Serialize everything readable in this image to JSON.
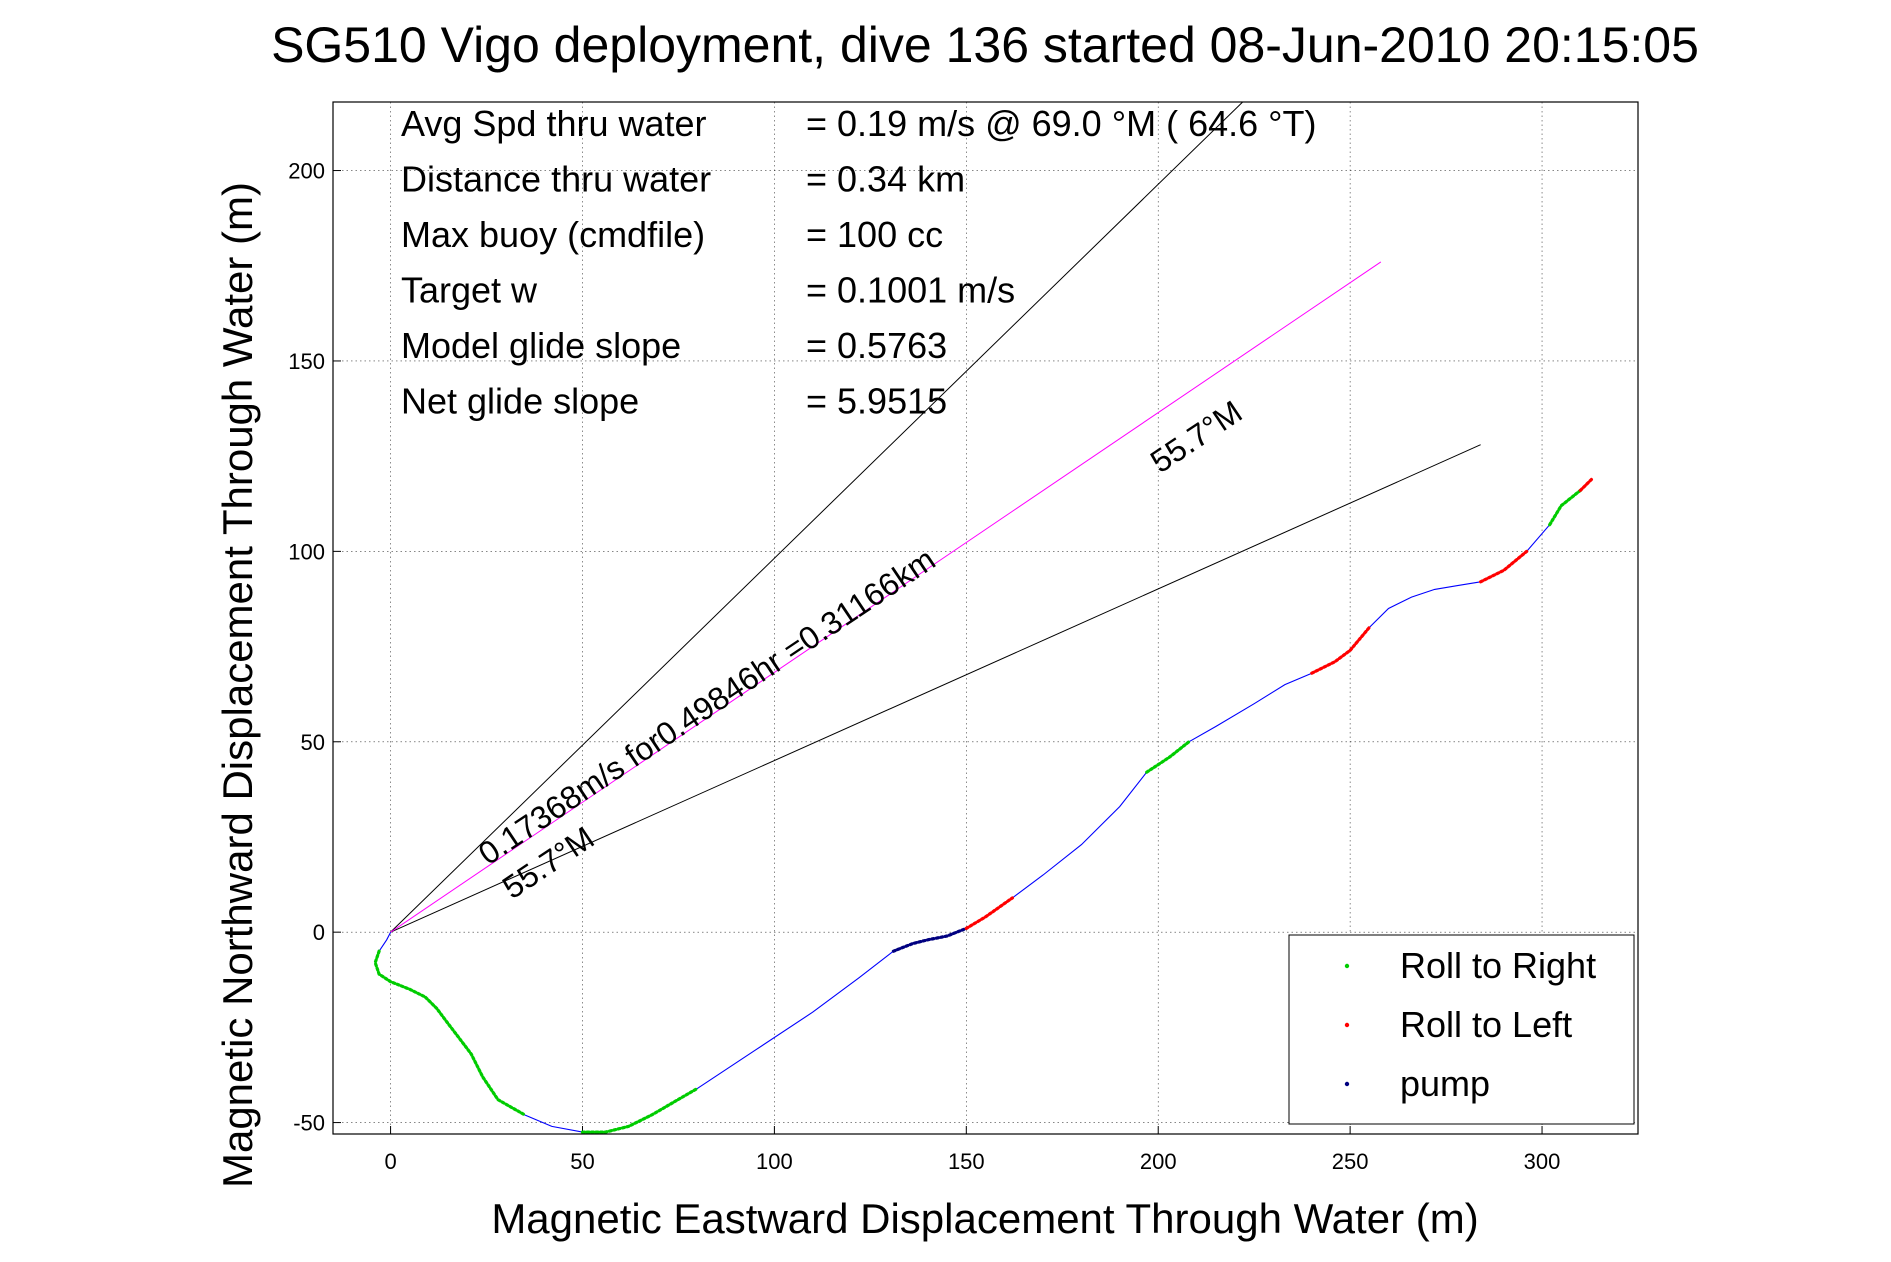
{
  "chart_data": {
    "type": "line",
    "title": "SG510 Vigo deployment, dive 136 started 08-Jun-2010 20:15:05",
    "xlabel": "Magnetic Eastward Displacement Through Water (m)",
    "ylabel": "Magnetic Northward Displacement Through Water (m)",
    "xlim": [
      -15,
      325
    ],
    "ylim": [
      -53,
      218
    ],
    "xticks": [
      0,
      50,
      100,
      150,
      200,
      250,
      300
    ],
    "yticks": [
      -50,
      0,
      50,
      100,
      150,
      200
    ],
    "grid": true,
    "legend_position": "bottom-right",
    "legend": [
      {
        "name": "Roll to Right",
        "color": "#00cc00"
      },
      {
        "name": "Roll to Left",
        "color": "#ff0000"
      },
      {
        "name": "pump",
        "color": "#000080"
      }
    ],
    "info_lines": [
      {
        "label": "Avg Spd thru water",
        "value": "=  0.19 m/s @  69.0 °M ( 64.6 °T)"
      },
      {
        "label": "Distance thru water",
        "value": "=  0.34 km"
      },
      {
        "label": "Max buoy (cmdfile)",
        "value": "= 100 cc"
      },
      {
        "label": "Target w",
        "value": "= 0.1001 m/s"
      },
      {
        "label": "Model glide slope",
        "value": "= 0.5763"
      },
      {
        "label": "Net glide slope",
        "value": "= 5.9515"
      }
    ],
    "annotations": {
      "mean_vector": "0.17368m/s for0.49846hr =0.31166km",
      "heading_upper": "55.7°M",
      "heading_lower": "55.7°M"
    },
    "reference_lines": [
      {
        "name": "upper-heading-line",
        "color": "#000000",
        "from": [
          0,
          0
        ],
        "to": [
          222,
          218
        ]
      },
      {
        "name": "lower-heading-line",
        "color": "#000000",
        "from": [
          0,
          0
        ],
        "to": [
          284,
          128
        ]
      },
      {
        "name": "mean-current-line",
        "color": "#ff00ff",
        "from": [
          0,
          0
        ],
        "to": [
          258,
          176
        ]
      }
    ],
    "track": {
      "name": "glider track",
      "color": "#0000ff",
      "points": [
        [
          0,
          0
        ],
        [
          -1,
          -2
        ],
        [
          -3,
          -5
        ],
        [
          -4,
          -8
        ],
        [
          -3,
          -11
        ],
        [
          0,
          -13
        ],
        [
          5,
          -15
        ],
        [
          9,
          -17
        ],
        [
          12,
          -20
        ],
        [
          15,
          -24
        ],
        [
          18,
          -28
        ],
        [
          21,
          -32
        ],
        [
          24,
          -38
        ],
        [
          28,
          -44
        ],
        [
          35,
          -48
        ],
        [
          42,
          -51
        ],
        [
          50,
          -52.5
        ],
        [
          56,
          -52.5
        ],
        [
          62,
          -51
        ],
        [
          68,
          -48
        ],
        [
          80,
          -41
        ],
        [
          95,
          -31
        ],
        [
          110,
          -21
        ],
        [
          122,
          -12
        ],
        [
          131,
          -5
        ],
        [
          136,
          -3
        ],
        [
          140,
          -2
        ],
        [
          145,
          -1
        ],
        [
          150,
          1
        ],
        [
          155,
          4
        ],
        [
          162,
          9
        ],
        [
          170,
          15
        ],
        [
          180,
          23
        ],
        [
          190,
          33
        ],
        [
          197,
          42
        ],
        [
          203,
          46
        ],
        [
          208,
          50
        ],
        [
          215,
          54
        ],
        [
          225,
          60
        ],
        [
          233,
          65
        ],
        [
          240,
          68
        ],
        [
          246,
          71
        ],
        [
          250,
          74
        ],
        [
          255,
          80
        ],
        [
          260,
          85
        ],
        [
          266,
          88
        ],
        [
          272,
          90
        ],
        [
          278,
          91
        ],
        [
          284,
          92
        ],
        [
          290,
          95
        ],
        [
          296,
          100
        ],
        [
          302,
          107
        ],
        [
          305,
          112
        ],
        [
          310,
          116
        ],
        [
          313,
          119
        ]
      ]
    },
    "highlight_segments": [
      {
        "mode": "Roll to Right",
        "color": "#00cc00",
        "from_point": 2,
        "to_point": 14
      },
      {
        "mode": "Roll to Right",
        "color": "#00cc00",
        "from_point": 16,
        "to_point": 20
      },
      {
        "mode": "pump",
        "color": "#000080",
        "from_point": 24,
        "to_point": 28
      },
      {
        "mode": "Roll to Left",
        "color": "#ff0000",
        "from_point": 28,
        "to_point": 30
      },
      {
        "mode": "Roll to Right",
        "color": "#00cc00",
        "from_point": 34,
        "to_point": 36
      },
      {
        "mode": "Roll to Left",
        "color": "#ff0000",
        "from_point": 40,
        "to_point": 43
      },
      {
        "mode": "Roll to Left",
        "color": "#ff0000",
        "from_point": 48,
        "to_point": 50
      },
      {
        "mode": "Roll to Right",
        "color": "#00cc00",
        "from_point": 51,
        "to_point": 53
      },
      {
        "mode": "Roll to Left",
        "color": "#ff0000",
        "from_point": 53,
        "to_point": 54
      }
    ]
  }
}
